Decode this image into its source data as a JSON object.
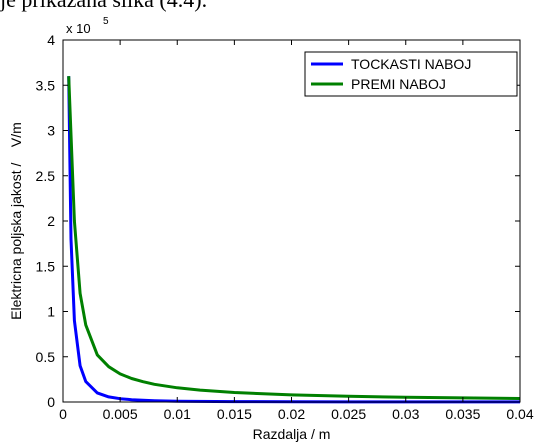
{
  "caption": "je prikazana slika (4.4).",
  "chart_data": {
    "type": "line",
    "xlabel": "Razdalja / m",
    "ylabel": "Elektricna poljska jakost /    V/m",
    "xlim": [
      0,
      0.04
    ],
    "ylim": [
      0,
      400000
    ],
    "x_ticks": [
      0,
      0.005,
      0.01,
      0.015,
      0.02,
      0.025,
      0.03,
      0.035,
      0.04
    ],
    "x_tick_labels": [
      "0",
      "0.005",
      "0.01",
      "0.015",
      "0.02",
      "0.025",
      "0.03",
      "0.035",
      "0.04"
    ],
    "y_ticks": [
      0,
      50000,
      100000,
      150000,
      200000,
      250000,
      300000,
      350000,
      400000
    ],
    "y_tick_labels": [
      "0",
      "0.5",
      "1",
      "1.5",
      "2",
      "2.5",
      "3",
      "3.5",
      "4"
    ],
    "y_multiplier": {
      "base": "x 10",
      "exponent": "5"
    },
    "grid": false,
    "legend_position": "top-right",
    "series": [
      {
        "name": "TOCKASTI NABOJ",
        "color": "#0000ff",
        "x": [
          0.0005,
          0.0007,
          0.001,
          0.0015,
          0.002,
          0.003,
          0.004,
          0.005,
          0.006,
          0.008,
          0.01,
          0.015,
          0.02,
          0.025,
          0.03,
          0.035,
          0.04
        ],
        "y": [
          360000,
          180000,
          90000,
          40000,
          22500,
          10000,
          5600,
          3600,
          2500,
          1400,
          900,
          400,
          225,
          144,
          100,
          73,
          56
        ]
      },
      {
        "name": "PREMI NABOJ",
        "color": "#008000",
        "x": [
          0.0005,
          0.001,
          0.0015,
          0.002,
          0.003,
          0.004,
          0.005,
          0.006,
          0.007,
          0.008,
          0.01,
          0.012,
          0.015,
          0.02,
          0.025,
          0.03,
          0.035,
          0.04
        ],
        "y": [
          360000,
          200000,
          120000,
          85000,
          52000,
          39000,
          31000,
          26000,
          22400,
          19600,
          15700,
          13100,
          10500,
          7800,
          6300,
          5200,
          4500,
          3900
        ]
      }
    ]
  }
}
